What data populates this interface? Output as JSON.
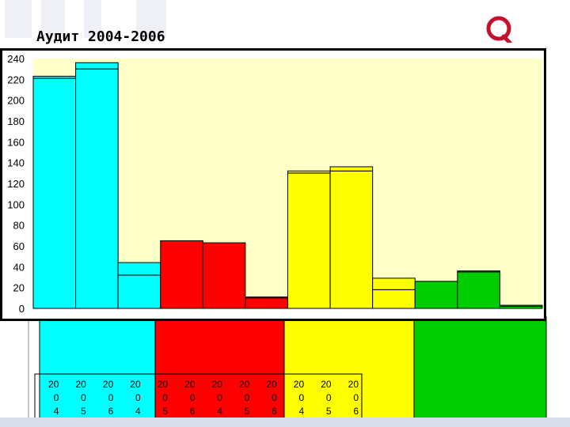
{
  "title": "Аудит 2004-2006",
  "logo_text": "QUINTILES",
  "colors": {
    "plot_bg": "#ffffc8",
    "cyan": "#00ffff",
    "red": "#ff0000",
    "yellow": "#ffff00",
    "green": "#00cc00"
  },
  "chart_data": {
    "type": "bar",
    "title": "",
    "xlabel": "",
    "ylabel": "",
    "ylim": [
      0,
      240
    ],
    "yticks": [
      "0",
      "20",
      "40",
      "60",
      "80",
      "100",
      "120",
      "140",
      "160",
      "180",
      "200",
      "220",
      "240"
    ],
    "categories": [
      "2004",
      "2005",
      "2006",
      "2004",
      "2005",
      "2006",
      "2004",
      "2005",
      "2006",
      "2004",
      "2005",
      "2006"
    ],
    "category_label_lines": [
      [
        "20",
        "0",
        "4"
      ],
      [
        "20",
        "0",
        "5"
      ],
      [
        "20",
        "0",
        "6"
      ],
      [
        "20",
        "0",
        "4"
      ],
      [
        "20",
        "0",
        "5"
      ],
      [
        "20",
        "0",
        "6"
      ],
      [
        "20",
        "0",
        "4"
      ],
      [
        "20",
        "0",
        "5"
      ],
      [
        "20",
        "0",
        "6"
      ],
      [
        "20",
        "0",
        "4"
      ],
      [
        "20",
        "0",
        "5"
      ],
      [
        "20",
        "0",
        "6"
      ]
    ],
    "group_colors": [
      "#00ffff",
      "#00ffff",
      "#00ffff",
      "#ff0000",
      "#ff0000",
      "#ff0000",
      "#ffff00",
      "#ffff00",
      "#ffff00",
      "#00cc00",
      "#00cc00",
      "#00cc00"
    ],
    "series": [
      {
        "values": [
          221,
          230,
          32,
          65,
          63,
          10,
          130,
          132,
          18,
          26,
          35,
          2
        ]
      },
      {
        "values": [
          2,
          6,
          12,
          0,
          0,
          1,
          2,
          4,
          11,
          0,
          1,
          1
        ]
      }
    ],
    "grid": false,
    "stacked": true
  }
}
